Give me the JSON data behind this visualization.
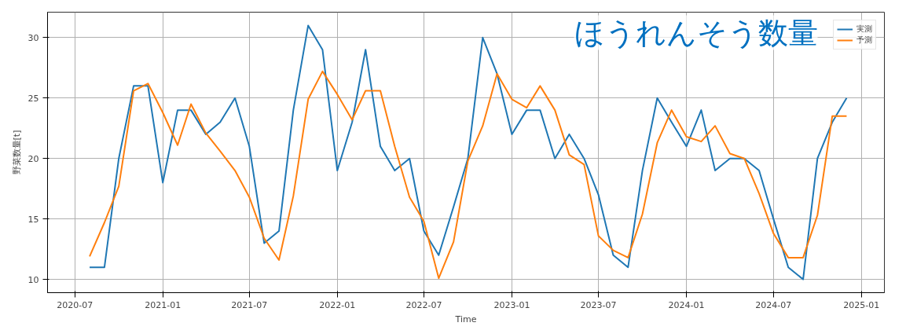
{
  "chart_data": {
    "type": "line",
    "title": "ほうれんそう数量",
    "xlabel": "Time",
    "ylabel": "野菜数量[t]",
    "x": [
      "2020-08",
      "2020-09",
      "2020-10",
      "2020-11",
      "2020-12",
      "2021-01",
      "2021-02",
      "2021-03",
      "2021-04",
      "2021-05",
      "2021-06",
      "2021-07",
      "2021-08",
      "2021-09",
      "2021-10",
      "2021-11",
      "2021-12",
      "2022-01",
      "2022-02",
      "2022-03",
      "2022-04",
      "2022-05",
      "2022-06",
      "2022-07",
      "2022-08",
      "2022-09",
      "2022-10",
      "2022-11",
      "2022-12",
      "2023-01",
      "2023-02",
      "2023-03",
      "2023-04",
      "2023-05",
      "2023-06",
      "2023-07",
      "2023-08",
      "2023-09",
      "2023-10",
      "2023-11",
      "2023-12",
      "2024-01",
      "2024-02",
      "2024-03",
      "2024-04",
      "2024-05",
      "2024-06",
      "2024-07",
      "2024-08",
      "2024-09",
      "2024-10",
      "2024-11",
      "2024-12"
    ],
    "series": [
      {
        "name": "実測",
        "color": "#1f77b4",
        "values": [
          11,
          11,
          20,
          26,
          26,
          18,
          24,
          24,
          22,
          23,
          25,
          21,
          13,
          14,
          24,
          31,
          29,
          19,
          23,
          29,
          21,
          19,
          20,
          14,
          12,
          16,
          20,
          30,
          27,
          22,
          24,
          24,
          20,
          22,
          20,
          17,
          12,
          11,
          19,
          25,
          23,
          21,
          24,
          19,
          20,
          20,
          19,
          15,
          11,
          10,
          20,
          23,
          25
        ]
      },
      {
        "name": "予測",
        "color": "#ff7f0e",
        "values": [
          11.9,
          14.7,
          17.7,
          25.6,
          26.2,
          23.8,
          21.1,
          24.5,
          22.1,
          20.6,
          19.0,
          16.8,
          13.4,
          11.6,
          16.9,
          24.9,
          27.2,
          25.3,
          23.2,
          25.6,
          25.6,
          21.0,
          16.8,
          14.8,
          10.1,
          13.1,
          19.8,
          22.7,
          27.0,
          24.9,
          24.2,
          26.0,
          24.0,
          20.3,
          19.5,
          13.6,
          12.4,
          11.8,
          15.4,
          21.3,
          24.0,
          21.8,
          21.4,
          22.7,
          20.4,
          20.0,
          17.1,
          13.8,
          11.8,
          11.8,
          15.3,
          23.5,
          23.5
        ]
      }
    ],
    "xlim": [
      "2020-05-05",
      "2025-02-18"
    ],
    "xticks": [
      "2020-07",
      "2021-01",
      "2021-07",
      "2022-01",
      "2022-07",
      "2023-01",
      "2023-07",
      "2024-01",
      "2024-07",
      "2025-01"
    ],
    "ylim": [
      8.9,
      32.1
    ],
    "yticks": [
      10,
      15,
      20,
      25,
      30
    ],
    "grid": true,
    "legend": "top right",
    "marker": "none",
    "line_style": "solid"
  }
}
